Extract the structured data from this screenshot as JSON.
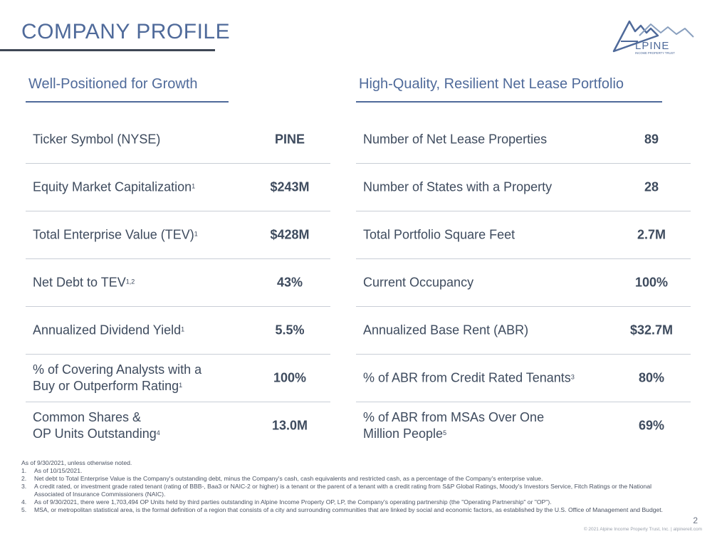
{
  "header": {
    "title": "COMPANY PROFILE"
  },
  "logo": {
    "text": "LPINE",
    "tagline": "INCOME PROPERTY TRUST",
    "icon": "mountain-logo-icon"
  },
  "left": {
    "heading": "Well-Positioned for Growth",
    "rows": [
      {
        "label": "Ticker Symbol (NYSE)",
        "sup": "",
        "label2": "",
        "sup2": "",
        "value": "PINE"
      },
      {
        "label": "Equity Market Capitalization",
        "sup": "1",
        "label2": "",
        "sup2": "",
        "value": "$243M"
      },
      {
        "label": "Total Enterprise Value (TEV)",
        "sup": "1",
        "label2": "",
        "sup2": "",
        "value": "$428M"
      },
      {
        "label": "Net Debt to TEV",
        "sup": "1,2",
        "label2": "",
        "sup2": "",
        "value": "43%"
      },
      {
        "label": "Annualized Dividend Yield",
        "sup": "1",
        "label2": "",
        "sup2": "",
        "value": "5.5%"
      },
      {
        "label": "% of Covering Analysts with a",
        "sup": "",
        "label2": "Buy or Outperform Rating",
        "sup2": "1",
        "value": "100%"
      },
      {
        "label": "Common Shares &",
        "sup": "",
        "label2": "OP Units Outstanding",
        "sup2": "4",
        "value": "13.0M"
      }
    ]
  },
  "right": {
    "heading": "High-Quality, Resilient Net Lease Portfolio",
    "rows": [
      {
        "label": "Number of Net Lease Properties",
        "sup": "",
        "label2": "",
        "sup2": "",
        "value": "89"
      },
      {
        "label": "Number of States with a Property",
        "sup": "",
        "label2": "",
        "sup2": "",
        "value": "28"
      },
      {
        "label": "Total Portfolio Square Feet",
        "sup": "",
        "label2": "",
        "sup2": "",
        "value": "2.7M"
      },
      {
        "label": "Current Occupancy",
        "sup": "",
        "label2": "",
        "sup2": "",
        "value": "100%"
      },
      {
        "label": "Annualized Base Rent (ABR)",
        "sup": "",
        "label2": "",
        "sup2": "",
        "value": "$32.7M"
      },
      {
        "label": "% of ABR from Credit Rated Tenants",
        "sup": "3",
        "label2": "",
        "sup2": "",
        "value": "80%"
      },
      {
        "label": "% of ABR from MSAs Over One",
        "sup": "",
        "label2": "Million People",
        "sup2": "5",
        "value": "69%"
      }
    ]
  },
  "notes": {
    "intro": "As of 9/30/2021, unless otherwise noted.",
    "items": [
      {
        "num": "1.",
        "text": "As of 10/15/2021."
      },
      {
        "num": "2.",
        "text": "Net debt to Total Enterprise Value is the Company's outstanding debt, minus the Company's cash, cash equivalents and restricted cash, as a percentage of the Company's enterprise value."
      },
      {
        "num": "3.",
        "text": "A credit rated, or investment grade rated tenant (rating of BBB-, Baa3 or NAIC-2 or higher) is a tenant or the parent of a tenant with a credit rating from S&P Global Ratings, Moody's Investors Service, Fitch Ratings or the National Associated of Insurance Commissioners (NAIC)."
      },
      {
        "num": "4.",
        "text": "As of 9/30/2021, there were 1,703,494 OP Units held by third parties outstanding in Alpine Income Property OP, LP, the Company's operating partnership (the \"Operating Partnership\" or \"OP\")."
      },
      {
        "num": "5.",
        "text": "MSA, or metropolitan statistical area, is the formal definition of a region that consists of a city and surrounding communities that are linked by social and economic factors, as established by the U.S. Office of Management and Budget."
      }
    ]
  },
  "page": {
    "number": "2",
    "footer": "© 2021 Alpine Income Property Trust, Inc.  |  alpinereit.com"
  },
  "colors": {
    "accent": "#4f6a9a",
    "text": "#3e4b5e",
    "divider": "#c9ced6"
  }
}
